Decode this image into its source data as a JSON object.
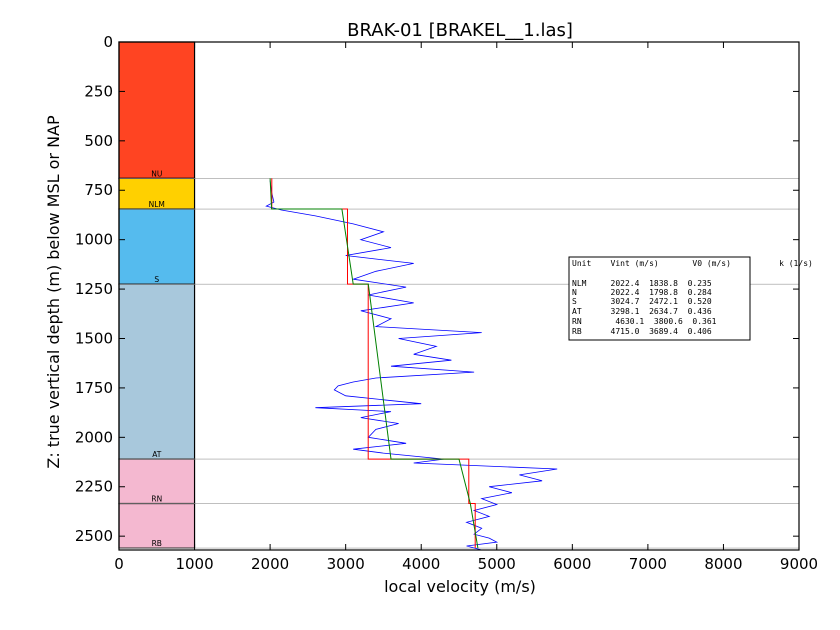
{
  "chart_data": {
    "type": "line",
    "title": "BRAK-01 [BRAKEL__1.las]",
    "xlabel": "local velocity (m/s)",
    "ylabel": "Z: true vertical depth (m) below MSL or NAP",
    "xlim": [
      0,
      9000
    ],
    "ylim": [
      2570,
      0
    ],
    "x_ticks": [
      "0",
      "1000",
      "2000",
      "3000",
      "4000",
      "5000",
      "6000",
      "7000",
      "8000",
      "9000"
    ],
    "y_ticks": [
      "0",
      "250",
      "500",
      "750",
      "1000",
      "1250",
      "1500",
      "1750",
      "2000",
      "2250",
      "2500"
    ],
    "grid": false,
    "units": [
      {
        "name": "NU",
        "top": 0,
        "bottom": 690,
        "color": "#ff4422"
      },
      {
        "name": "NLM",
        "top": 690,
        "bottom": 845,
        "color": "#ffd000"
      },
      {
        "name": "S",
        "top": 845,
        "bottom": 1225,
        "color": "#55bbee"
      },
      {
        "name": "AT",
        "top": 1225,
        "bottom": 2110,
        "color": "#a8c8dc"
      },
      {
        "name": "RN",
        "top": 2110,
        "bottom": 2335,
        "color": "#f4b8d0"
      },
      {
        "name": "RB",
        "top": 2335,
        "bottom": 2560,
        "color": "#f4b8d0"
      }
    ],
    "unit_column_xlim": [
      0,
      1000
    ],
    "boundaries": [
      690,
      845,
      1225,
      2110,
      2335,
      2560
    ],
    "series": [
      {
        "name": "",
        "color": "#0000ff",
        "x": [
          2000,
          2020,
          2050,
          1950,
          2150,
          2600,
          3100,
          3500,
          3200,
          3600,
          3000,
          3900,
          3400,
          3100,
          3800,
          3300,
          3900,
          3200,
          3600,
          3400,
          4800,
          3700,
          4200,
          3900,
          4400,
          3600,
          4700,
          3400,
          3100,
          2900,
          2850,
          3000,
          3500,
          4000,
          2600,
          3600,
          3200,
          3700,
          3400,
          3300,
          3800,
          3100,
          3500,
          4300,
          3900,
          5800,
          5300,
          5600,
          4900,
          5200,
          4800,
          5000,
          4700,
          4900,
          4600,
          4800,
          4700,
          4900,
          5000,
          4600,
          4800
        ],
        "y": [
          700,
          760,
          810,
          830,
          850,
          880,
          920,
          960,
          1000,
          1040,
          1080,
          1120,
          1160,
          1200,
          1240,
          1280,
          1320,
          1360,
          1400,
          1440,
          1470,
          1500,
          1540,
          1580,
          1610,
          1640,
          1670,
          1700,
          1720,
          1740,
          1760,
          1790,
          1810,
          1830,
          1850,
          1870,
          1900,
          1930,
          1960,
          2000,
          2030,
          2060,
          2080,
          2110,
          2130,
          2160,
          2190,
          2220,
          2250,
          2280,
          2310,
          2340,
          2370,
          2400,
          2430,
          2460,
          2490,
          2510,
          2530,
          2550,
          2570
        ]
      },
      {
        "name": "",
        "color": "#ff0000",
        "x": [
          2022.4,
          2022.4,
          2022.4,
          2022.4,
          3024.7,
          3024.7,
          3298.1,
          3298.1,
          4630.1,
          4630.1,
          4715.0,
          4715.0
        ],
        "y": [
          690,
          845,
          845,
          845,
          845,
          1225,
          1225,
          2110,
          2110,
          2335,
          2335,
          2560
        ]
      },
      {
        "name": "",
        "color": "#008000",
        "x": [
          2000,
          2020,
          2950,
          3100,
          3300,
          3600,
          3950,
          4500,
          4650,
          4750
        ],
        "y": [
          690,
          845,
          845,
          1225,
          1225,
          2110,
          2110,
          2110,
          2335,
          2560
        ]
      }
    ]
  },
  "legend": {
    "header": "Unit    Vint (m/s)       V0 (m/s)          k (1/s)",
    "rows": [
      "NLM     2022.4  1838.8  0.235",
      "N       2022.4  1798.8  0.284",
      "S       3024.7  2472.1  0.520",
      "AT      3298.1  2634.7  0.436",
      "RN       4630.1  3800.6  0.361",
      "RB      4715.0  3689.4  0.406"
    ]
  }
}
